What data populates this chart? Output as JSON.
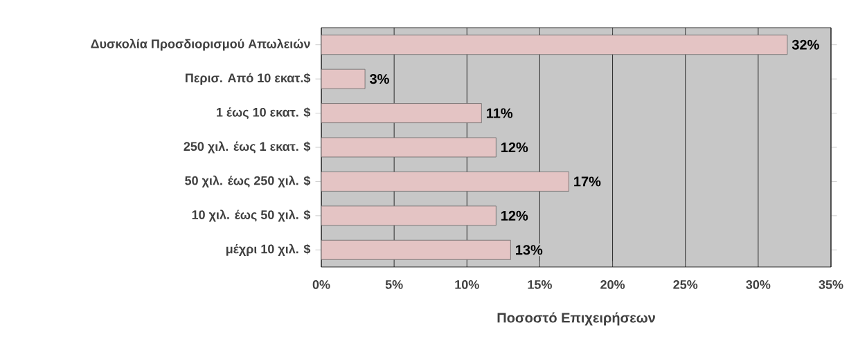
{
  "chart_data": {
    "type": "bar",
    "orientation": "horizontal",
    "xlabel": "Ποσοστό Επιχειρήσεων",
    "categories": [
      "Δυσκολία Προσδιορισμού Απωλειών",
      "Περισ. Από 10 εκατ.$",
      "1 έως 10 εκατ. $",
      "250 χιλ. έως 1 εκατ. $",
      "50 χιλ. έως 250 χιλ. $",
      "10 χιλ. έως 50 χιλ. $",
      "μέχρι 10 χιλ. $"
    ],
    "values": [
      32,
      3,
      11,
      12,
      17,
      12,
      13
    ],
    "value_labels": [
      "32%",
      "3%",
      "11%",
      "12%",
      "17%",
      "12%",
      "13%"
    ],
    "color": "#e4c4c4",
    "xlim": [
      0,
      35
    ],
    "xticks": [
      {
        "value": 0,
        "label": "0%"
      },
      {
        "value": 5,
        "label": "5%"
      },
      {
        "value": 10,
        "label": "10%"
      },
      {
        "value": 15,
        "label": "15%"
      },
      {
        "value": 20,
        "label": "20%"
      },
      {
        "value": 25,
        "label": "25%"
      },
      {
        "value": 30,
        "label": "30%"
      },
      {
        "value": 35,
        "label": "35%"
      }
    ],
    "grid": "x"
  }
}
